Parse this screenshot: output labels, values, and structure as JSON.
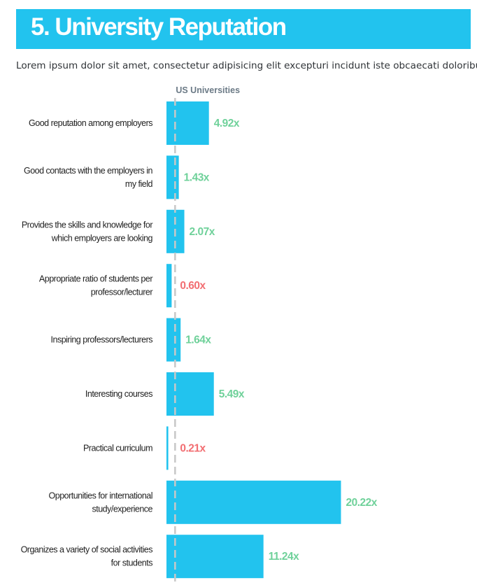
{
  "header": {
    "title": "5. University Reputation",
    "subtitle": "Lorem ipsum dolor sit amet, consectetur adipisicing elit excepturi incidunt iste obcaecati doloribus?"
  },
  "colors": {
    "banner": "#22c3ee",
    "bar": "#22c3ee",
    "positive": "#6fd19a",
    "negative": "#f26e72",
    "baseline": "#c8c8c8"
  },
  "chart_data": {
    "type": "bar",
    "orientation": "horizontal",
    "baseline_value": 1,
    "series": [
      {
        "name": "US Universities",
        "values": [
          4.92,
          1.43,
          2.07,
          0.6,
          1.64,
          5.49,
          0.21,
          20.22,
          11.24
        ]
      }
    ],
    "categories": [
      [
        "Good reputation among employers"
      ],
      [
        "Good contacts with the employers in",
        "my field"
      ],
      [
        "Provides the skills and knowledge for",
        "which employers are looking"
      ],
      [
        "Appropriate ratio of students per",
        "professor/lecturer"
      ],
      [
        "Inspiring professors/lecturers"
      ],
      [
        "Interesting courses"
      ],
      [
        "Practical curriculum"
      ],
      [
        "Opportunities for international",
        "study/experience"
      ],
      [
        "Organizes a variety of social activities",
        "for students"
      ]
    ],
    "value_labels": [
      "4.92x",
      "1.43x",
      "2.07x",
      "0.60x",
      "1.64x",
      "5.49x",
      "0.21x",
      "20.22x",
      "11.24x"
    ]
  }
}
